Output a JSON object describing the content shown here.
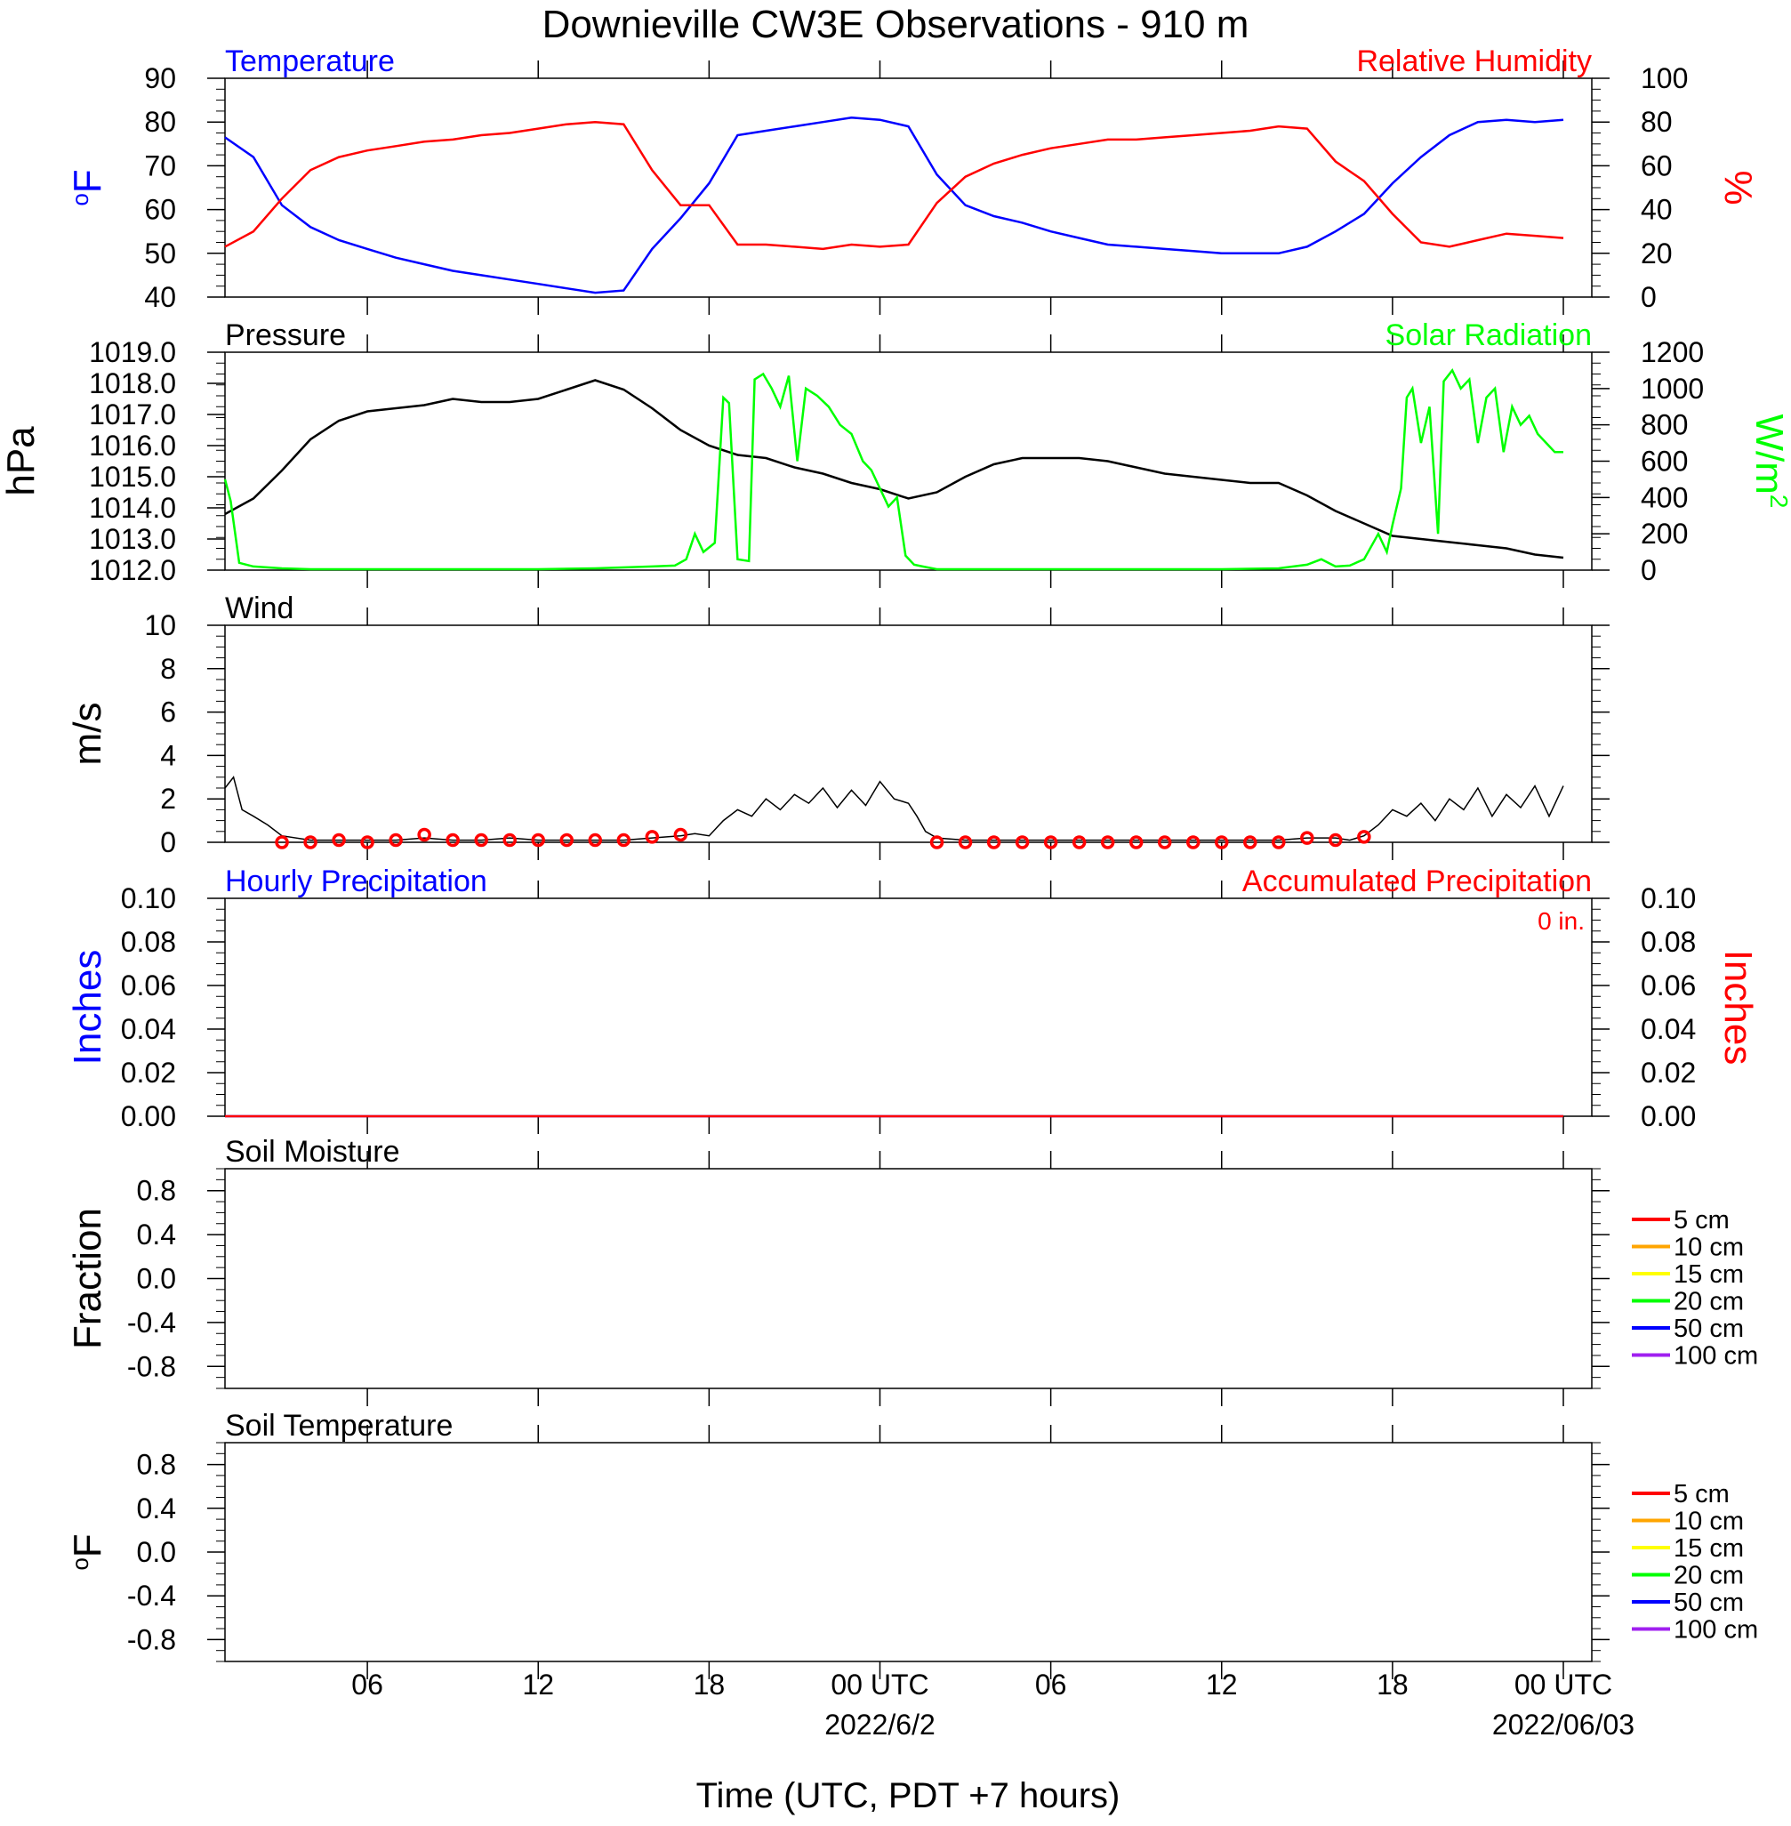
{
  "title": "Downieville CW3E Observations - 910 m",
  "xaxis": {
    "label": "Time (UTC, PDT +7 hours)",
    "start_hour": 1,
    "end_hour": 48,
    "ticks": [
      {
        "hour": 6,
        "label": "06"
      },
      {
        "hour": 12,
        "label": "12"
      },
      {
        "hour": 18,
        "label": "18"
      },
      {
        "hour": 24,
        "label": "00 UTC",
        "date": "2022/6/2"
      },
      {
        "hour": 30,
        "label": "06"
      },
      {
        "hour": 36,
        "label": "12"
      },
      {
        "hour": 42,
        "label": "18"
      },
      {
        "hour": 48,
        "label": "00 UTC",
        "date": "2022/06/03"
      }
    ]
  },
  "colors": {
    "blue": "#0000ff",
    "red": "#ff0000",
    "green": "#00ff00",
    "black": "#000000",
    "orange": "#ffa500",
    "yellow": "#ffff00",
    "purple": "#a020f0"
  },
  "chart_data": [
    {
      "type": "line",
      "panel": "temperature-humidity",
      "left_title": "Temperature",
      "right_title": "Relative Humidity",
      "ylabel_left": "oF",
      "ylabel_right": "%",
      "ylim_left": [
        40,
        90
      ],
      "ylim_right": [
        0,
        100
      ],
      "yticks_left": [
        "40",
        "50",
        "60",
        "70",
        "80",
        "90"
      ],
      "yticks_right": [
        "0",
        "20",
        "40",
        "60",
        "80",
        "100"
      ],
      "series": [
        {
          "name": "Temperature",
          "axis": "left",
          "color": "#0000ff",
          "x": [
            1,
            2,
            3,
            4,
            5,
            6,
            7,
            8,
            9,
            10,
            11,
            12,
            13,
            14,
            15,
            16,
            17,
            18,
            19,
            20,
            21,
            22,
            23,
            24,
            25,
            26,
            27,
            28,
            29,
            30,
            31,
            32,
            33,
            34,
            35,
            36,
            37,
            38,
            39,
            40,
            41,
            42,
            43,
            44,
            45,
            46,
            47,
            48
          ],
          "y": [
            76.5,
            72,
            61,
            56,
            53,
            51,
            49,
            47.5,
            46,
            45,
            44,
            43,
            42,
            41,
            41.5,
            51,
            58,
            66,
            77,
            78,
            79,
            80,
            81,
            80.5,
            79,
            68,
            61,
            58.5,
            57,
            55,
            53.5,
            52,
            51.5,
            51,
            50.5,
            50,
            50,
            50,
            51.5,
            55,
            59,
            66,
            72,
            77,
            80,
            80.5,
            80,
            80.5
          ]
        },
        {
          "name": "Relative Humidity",
          "axis": "right",
          "color": "#ff0000",
          "x": [
            1,
            2,
            3,
            4,
            5,
            6,
            7,
            8,
            9,
            10,
            11,
            12,
            13,
            14,
            15,
            16,
            17,
            18,
            19,
            20,
            21,
            22,
            23,
            24,
            25,
            26,
            27,
            28,
            29,
            30,
            31,
            32,
            33,
            34,
            35,
            36,
            37,
            38,
            39,
            40,
            41,
            42,
            43,
            44,
            45,
            46,
            47,
            48
          ],
          "y": [
            23,
            30,
            45,
            58,
            64,
            67,
            69,
            71,
            72,
            74,
            75,
            77,
            79,
            80,
            79,
            58,
            42,
            42,
            24,
            24,
            23,
            22,
            24,
            23,
            24,
            43,
            55,
            61,
            65,
            68,
            70,
            72,
            72,
            73,
            74,
            75,
            76,
            78,
            77,
            62,
            53,
            38,
            25,
            23,
            26,
            29,
            28,
            27
          ]
        }
      ]
    },
    {
      "type": "line",
      "panel": "pressure-solar",
      "left_title": "Pressure",
      "right_title": "Solar Radiation",
      "ylabel_left": "hPa",
      "ylabel_right": "W/m2",
      "ylim_left": [
        1012,
        1019
      ],
      "ylim_right": [
        0,
        1200
      ],
      "yticks_left": [
        "1012.0",
        "1013.0",
        "1014.0",
        "1015.0",
        "1016.0",
        "1017.0",
        "1018.0",
        "1019.0"
      ],
      "yticks_right": [
        "0",
        "200",
        "400",
        "600",
        "800",
        "1000",
        "1200"
      ],
      "series": [
        {
          "name": "Pressure",
          "axis": "left",
          "color": "#000000",
          "x": [
            1,
            2,
            3,
            4,
            5,
            6,
            7,
            8,
            9,
            10,
            11,
            12,
            13,
            14,
            15,
            16,
            17,
            18,
            19,
            20,
            21,
            22,
            23,
            24,
            25,
            26,
            27,
            28,
            29,
            30,
            31,
            32,
            33,
            34,
            35,
            36,
            37,
            38,
            39,
            40,
            41,
            42,
            43,
            44,
            45,
            46,
            47,
            48
          ],
          "y": [
            1013.8,
            1014.3,
            1015.2,
            1016.2,
            1016.8,
            1017.1,
            1017.2,
            1017.3,
            1017.5,
            1017.4,
            1017.4,
            1017.5,
            1017.8,
            1018.1,
            1017.8,
            1017.2,
            1016.5,
            1016.0,
            1015.7,
            1015.6,
            1015.3,
            1015.1,
            1014.8,
            1014.6,
            1014.3,
            1014.5,
            1015.0,
            1015.4,
            1015.6,
            1015.6,
            1015.6,
            1015.5,
            1015.3,
            1015.1,
            1015.0,
            1014.9,
            1014.8,
            1014.8,
            1014.4,
            1013.9,
            1013.5,
            1013.1,
            1013.0,
            1012.9,
            1012.8,
            1012.7,
            1012.5,
            1012.4
          ]
        },
        {
          "name": "Solar Radiation",
          "axis": "right",
          "color": "#00ff00",
          "x": [
            1,
            1.2,
            1.5,
            2,
            3,
            4,
            6,
            8,
            10,
            12,
            14,
            16,
            16.8,
            17.2,
            17.5,
            17.8,
            18.2,
            18.5,
            18.7,
            19.0,
            19.4,
            19.6,
            19.9,
            20.2,
            20.5,
            20.8,
            21.1,
            21.4,
            21.8,
            22.2,
            22.6,
            23.0,
            23.4,
            23.7,
            24.0,
            24.3,
            24.6,
            24.9,
            25.2,
            25.5,
            26,
            27,
            28,
            30,
            32,
            34,
            36,
            38,
            39,
            39.5,
            40,
            40.5,
            41,
            41.5,
            41.8,
            42,
            42.3,
            42.5,
            42.7,
            43.0,
            43.3,
            43.6,
            43.8,
            44.1,
            44.4,
            44.7,
            45.0,
            45.3,
            45.6,
            45.9,
            46.2,
            46.5,
            46.8,
            47.1,
            47.4,
            47.7,
            48
          ],
          "y": [
            500,
            380,
            40,
            20,
            10,
            5,
            5,
            5,
            5,
            5,
            10,
            20,
            25,
            60,
            200,
            100,
            150,
            950,
            920,
            60,
            50,
            1050,
            1080,
            1000,
            900,
            1070,
            600,
            1000,
            960,
            900,
            800,
            750,
            600,
            550,
            450,
            350,
            400,
            80,
            30,
            20,
            5,
            5,
            5,
            5,
            5,
            5,
            5,
            10,
            30,
            60,
            20,
            25,
            60,
            200,
            100,
            250,
            450,
            950,
            1000,
            700,
            900,
            200,
            1040,
            1100,
            1000,
            1050,
            700,
            950,
            1000,
            650,
            900,
            800,
            850,
            750,
            700,
            650,
            650
          ]
        }
      ]
    },
    {
      "type": "line",
      "panel": "wind",
      "left_title": "Wind",
      "ylabel_left": "m/s",
      "ylim_left": [
        0,
        10
      ],
      "yticks_left": [
        "0",
        "2",
        "4",
        "6",
        "8",
        "10"
      ],
      "series": [
        {
          "name": "Wind",
          "axis": "left",
          "color": "#000000",
          "x": [
            1,
            1.3,
            1.6,
            2,
            2.5,
            3,
            4,
            5,
            6,
            7,
            8,
            9,
            10,
            11,
            12,
            13,
            14,
            15,
            16,
            17,
            17.5,
            18,
            18.5,
            19,
            19.5,
            20,
            20.5,
            21,
            21.5,
            22,
            22.5,
            23,
            23.5,
            24,
            24.5,
            25,
            25.3,
            25.6,
            26,
            27,
            28,
            29,
            30,
            31,
            32,
            33,
            34,
            35,
            36,
            37,
            38,
            39,
            40,
            40.5,
            41,
            41.5,
            42,
            42.5,
            43,
            43.5,
            44,
            44.5,
            45,
            45.5,
            46,
            46.5,
            47,
            47.5,
            48
          ],
          "y": [
            2.5,
            3.0,
            1.5,
            1.2,
            0.8,
            0.3,
            0.1,
            0.1,
            0.1,
            0.1,
            0.2,
            0.1,
            0.1,
            0.2,
            0.1,
            0.1,
            0.1,
            0.1,
            0.2,
            0.3,
            0.4,
            0.3,
            1.0,
            1.5,
            1.2,
            2.0,
            1.5,
            2.2,
            1.8,
            2.5,
            1.6,
            2.4,
            1.7,
            2.8,
            2.0,
            1.8,
            1.2,
            0.5,
            0.2,
            0.1,
            0.1,
            0.1,
            0.1,
            0.1,
            0.1,
            0.1,
            0.1,
            0.1,
            0.1,
            0.1,
            0.1,
            0.2,
            0.2,
            0.1,
            0.3,
            0.8,
            1.5,
            1.2,
            1.8,
            1.0,
            2.0,
            1.5,
            2.5,
            1.2,
            2.2,
            1.6,
            2.6,
            1.2,
            2.6
          ]
        }
      ],
      "barb_circles": [
        3,
        4,
        5,
        6,
        7,
        8,
        9,
        10,
        11,
        12,
        13,
        14,
        15,
        16,
        17,
        26,
        27,
        28,
        29,
        30,
        31,
        32,
        33,
        34,
        35,
        36,
        37,
        38,
        39,
        40,
        41
      ],
      "barb_circle_speeds": [
        0,
        0,
        0.1,
        0,
        0.1,
        0.35,
        0.1,
        0.1,
        0.1,
        0.1,
        0.1,
        0.1,
        0.1,
        0.25,
        0.35,
        0,
        0,
        0,
        0,
        0,
        0,
        0,
        0,
        0,
        0,
        0,
        0,
        0,
        0.2,
        0.1,
        0.25
      ]
    },
    {
      "type": "line",
      "panel": "precipitation",
      "left_title": "Hourly Precipitation",
      "right_title": "Accumulated Precipitation",
      "total_label": "0 in.",
      "ylabel_left": "Inches",
      "ylabel_right": "Inches",
      "ylim_left": [
        0,
        0.1
      ],
      "ylim_right": [
        0,
        0.1
      ],
      "yticks_left": [
        "0.00",
        "0.02",
        "0.04",
        "0.06",
        "0.08",
        "0.10"
      ],
      "yticks_right": [
        "0.00",
        "0.02",
        "0.04",
        "0.06",
        "0.08",
        "0.10"
      ],
      "series": [
        {
          "name": "Hourly Precipitation",
          "axis": "left",
          "color": "#0000ff",
          "x": [
            1,
            48
          ],
          "y": [
            0,
            0
          ]
        },
        {
          "name": "Accumulated Precipitation",
          "axis": "right",
          "color": "#ff0000",
          "x": [
            1,
            48
          ],
          "y": [
            0,
            0
          ]
        }
      ]
    },
    {
      "type": "line",
      "panel": "soil-moisture",
      "left_title": "Soil Moisture",
      "ylabel_left": "Fraction",
      "ylim_left": [
        -1,
        1
      ],
      "yticks_left": [
        "-0.8",
        "-0.4",
        "0.0",
        "0.4",
        "0.8"
      ],
      "legend": [
        {
          "label": "5 cm",
          "color": "#ff0000"
        },
        {
          "label": "10 cm",
          "color": "#ffa500"
        },
        {
          "label": "15 cm",
          "color": "#ffff00"
        },
        {
          "label": "20 cm",
          "color": "#00ff00"
        },
        {
          "label": "50 cm",
          "color": "#0000ff"
        },
        {
          "label": "100 cm",
          "color": "#a020f0"
        }
      ],
      "series": []
    },
    {
      "type": "line",
      "panel": "soil-temperature",
      "left_title": "Soil Temperature",
      "ylabel_left": "oF",
      "ylim_left": [
        -1,
        1
      ],
      "yticks_left": [
        "-0.8",
        "-0.4",
        "0.0",
        "0.4",
        "0.8"
      ],
      "legend": [
        {
          "label": "5 cm",
          "color": "#ff0000"
        },
        {
          "label": "10 cm",
          "color": "#ffa500"
        },
        {
          "label": "15 cm",
          "color": "#ffff00"
        },
        {
          "label": "20 cm",
          "color": "#00ff00"
        },
        {
          "label": "50 cm",
          "color": "#0000ff"
        },
        {
          "label": "100 cm",
          "color": "#a020f0"
        }
      ],
      "series": []
    }
  ]
}
